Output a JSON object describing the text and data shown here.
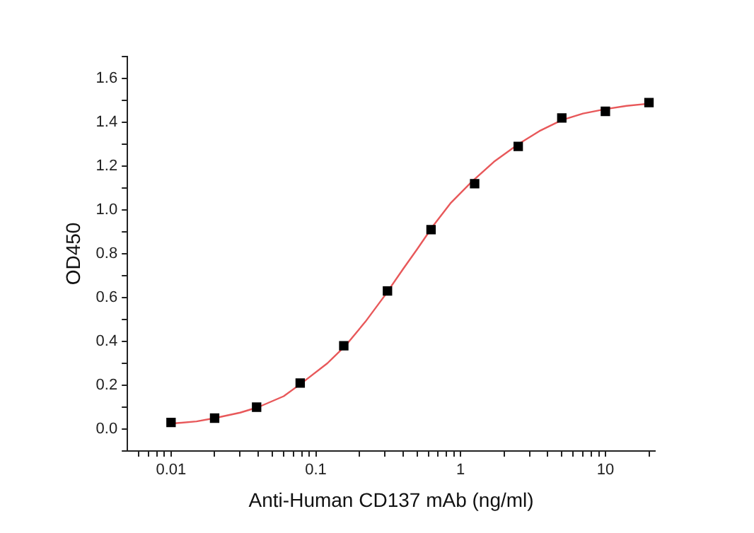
{
  "chart_data": {
    "type": "scatter",
    "xlabel": "Anti-Human CD137 mAb (ng/ml)",
    "ylabel": "OD450",
    "log": "x",
    "grid": false,
    "legend": false,
    "xlim": [
      0.005,
      22
    ],
    "ylim": [
      -0.1,
      1.7
    ],
    "xticks": [
      {
        "value": 0.006,
        "label": null
      },
      {
        "value": 0.007,
        "label": null
      },
      {
        "value": 0.008,
        "label": null
      },
      {
        "value": 0.009,
        "label": null
      },
      0.01,
      {
        "value": 0.02,
        "label": null
      },
      {
        "value": 0.03,
        "label": null
      },
      {
        "value": 0.04,
        "label": null
      },
      {
        "value": 0.05,
        "label": null
      },
      {
        "value": 0.06,
        "label": null
      },
      {
        "value": 0.07,
        "label": null
      },
      {
        "value": 0.08,
        "label": null
      },
      {
        "value": 0.09,
        "label": null
      },
      0.1,
      {
        "value": 0.2,
        "label": null
      },
      {
        "value": 0.3,
        "label": null
      },
      {
        "value": 0.4,
        "label": null
      },
      {
        "value": 0.5,
        "label": null
      },
      {
        "value": 0.6,
        "label": null
      },
      {
        "value": 0.7,
        "label": null
      },
      {
        "value": 0.8,
        "label": null
      },
      {
        "value": 0.9,
        "label": null
      },
      1,
      {
        "value": 2,
        "label": null
      },
      {
        "value": 3,
        "label": null
      },
      {
        "value": 4,
        "label": null
      },
      {
        "value": 5,
        "label": null
      },
      {
        "value": 6,
        "label": null
      },
      {
        "value": 7,
        "label": null
      },
      {
        "value": 8,
        "label": null
      },
      {
        "value": 9,
        "label": null
      },
      10,
      {
        "value": 20,
        "label": null
      }
    ],
    "yticks": [
      {
        "value": -0.1,
        "label": null
      },
      {
        "value": 0,
        "label": "0.0"
      },
      {
        "value": 0.1,
        "label": null
      },
      0.2,
      {
        "value": 0.3,
        "label": null
      },
      0.4,
      {
        "value": 0.5,
        "label": null
      },
      0.6,
      {
        "value": 0.7,
        "label": null
      },
      0.8,
      {
        "value": 0.9,
        "label": null
      },
      {
        "value": 1,
        "label": "1.0"
      },
      {
        "value": 1.1,
        "label": null
      },
      1.2,
      {
        "value": 1.3,
        "label": null
      },
      1.4,
      {
        "value": 1.5,
        "label": null
      },
      1.6,
      {
        "value": 1.7,
        "label": null
      }
    ],
    "series": [
      {
        "type": "line",
        "color": "#e8585a",
        "marker": "none",
        "line_style": "solid",
        "x": [
          0.01,
          0.015,
          0.02,
          0.03,
          0.04,
          0.06,
          0.08,
          0.12,
          0.16,
          0.22,
          0.3,
          0.4,
          0.5,
          0.65,
          0.85,
          1.2,
          1.7,
          2.5,
          3.5,
          5,
          7,
          10,
          14,
          20
        ],
        "values": [
          0.025,
          0.035,
          0.05,
          0.075,
          0.1,
          0.15,
          0.21,
          0.3,
          0.38,
          0.49,
          0.61,
          0.73,
          0.82,
          0.93,
          1.03,
          1.13,
          1.22,
          1.3,
          1.36,
          1.41,
          1.44,
          1.46,
          1.475,
          1.485
        ]
      },
      {
        "color": "#000000",
        "marker": "square",
        "x": [
          0.01,
          0.02,
          0.039,
          0.078,
          0.156,
          0.3125,
          0.625,
          1.25,
          2.5,
          5,
          10,
          20
        ],
        "values": [
          0.03,
          0.05,
          0.1,
          0.21,
          0.38,
          0.63,
          0.91,
          1.12,
          1.29,
          1.42,
          1.45,
          1.49
        ]
      }
    ]
  }
}
